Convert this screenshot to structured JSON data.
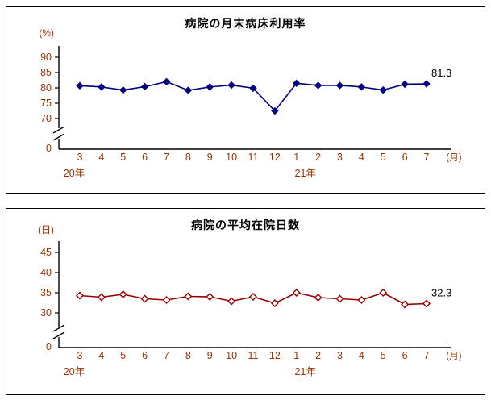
{
  "colors": {
    "axis_text": "#993300",
    "axis_line": "#000000",
    "title": "#000000",
    "annotation": "#000000",
    "chart1_line": "#000080",
    "chart2_line": "#990000"
  },
  "chart_data": [
    {
      "type": "line",
      "title": "病院の月末病床利用率",
      "unit_label": "(%)",
      "x_axis_suffix": "(月)",
      "categories": [
        "3",
        "4",
        "5",
        "6",
        "7",
        "8",
        "9",
        "10",
        "11",
        "12",
        "1",
        "2",
        "3",
        "4",
        "5",
        "6",
        "7"
      ],
      "year_labels": [
        {
          "label": "20年",
          "month_index": 0
        },
        {
          "label": "21年",
          "month_index": 10
        }
      ],
      "y_ticks": [
        90,
        85,
        80,
        75,
        70
      ],
      "zero_label": "0",
      "axis_break": true,
      "ylim_shown": [
        70,
        90
      ],
      "line_color": "#000080",
      "marker": "diamond-filled",
      "values": [
        80.7,
        80.3,
        79.3,
        80.4,
        82.0,
        79.2,
        80.3,
        80.9,
        79.9,
        72.5,
        81.5,
        80.8,
        80.8,
        80.3,
        79.3,
        81.2,
        81.3
      ],
      "last_value_label": "81.3"
    },
    {
      "type": "line",
      "title": "病院の平均在院日数",
      "unit_label": "(日)",
      "x_axis_suffix": "(月)",
      "categories": [
        "3",
        "4",
        "5",
        "6",
        "7",
        "8",
        "9",
        "10",
        "11",
        "12",
        "1",
        "2",
        "3",
        "4",
        "5",
        "6",
        "7"
      ],
      "year_labels": [
        {
          "label": "20年",
          "month_index": 0
        },
        {
          "label": "21年",
          "month_index": 10
        }
      ],
      "y_ticks": [
        45,
        40,
        35,
        30
      ],
      "zero_label": "0",
      "axis_break": true,
      "ylim_shown": [
        30,
        45
      ],
      "line_color": "#990000",
      "marker": "diamond-open",
      "values": [
        34.3,
        33.9,
        34.6,
        33.5,
        33.2,
        34.1,
        34.0,
        32.9,
        34.0,
        32.4,
        35.0,
        33.8,
        33.5,
        33.2,
        35.0,
        32.1,
        32.3
      ],
      "last_value_label": "32.3"
    }
  ]
}
